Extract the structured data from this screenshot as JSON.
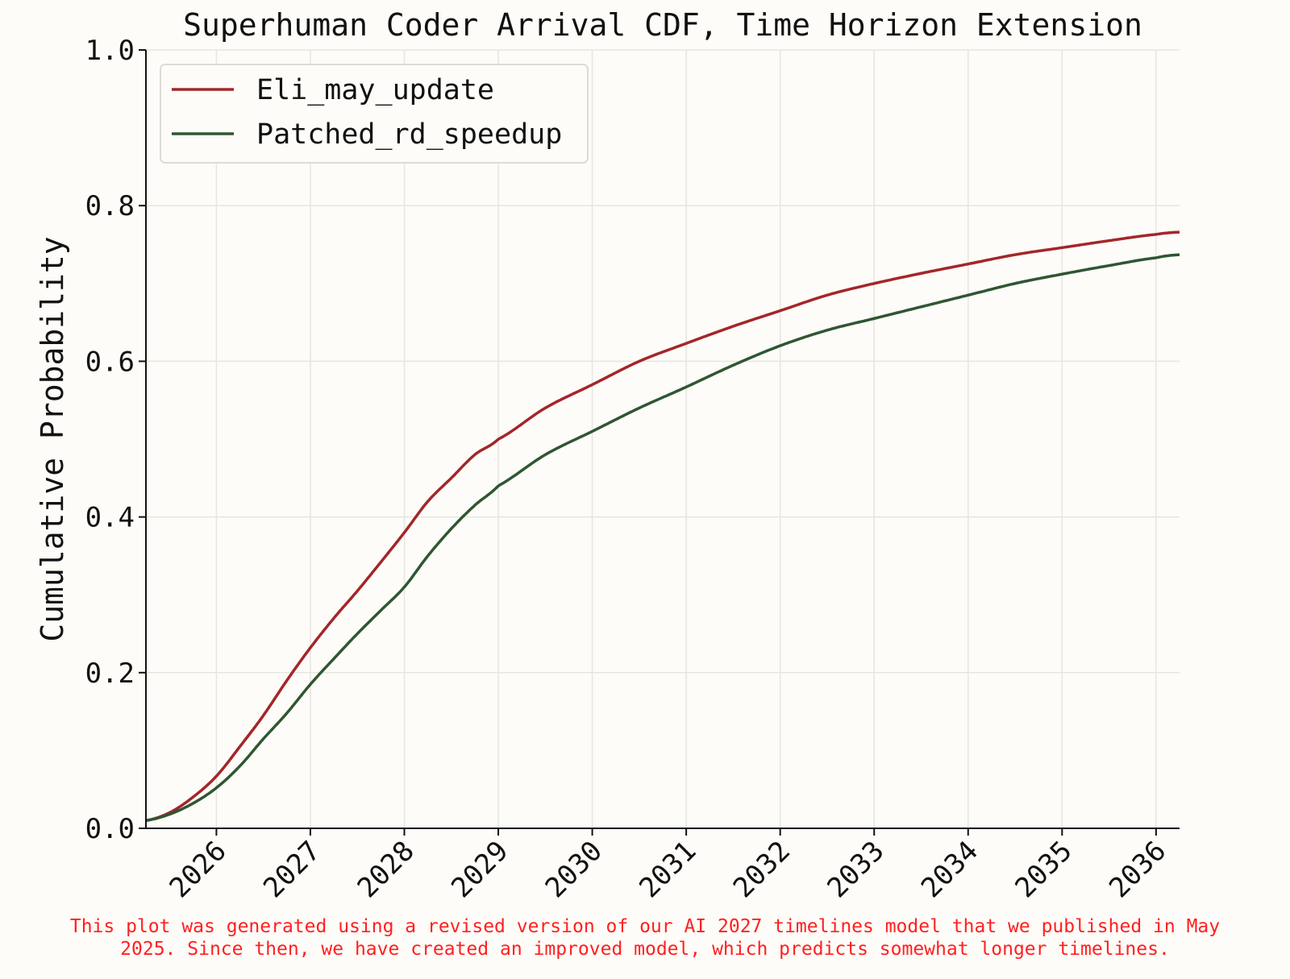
{
  "chart_data": {
    "type": "line",
    "title": "Superhuman Coder Arrival CDF, Time Horizon Extension",
    "xlabel": "",
    "ylabel": "Cumulative Probability",
    "xlim": [
      2025.25,
      2036.25
    ],
    "ylim": [
      0,
      1
    ],
    "xticks": [
      2026,
      2027,
      2028,
      2029,
      2030,
      2031,
      2032,
      2033,
      2034,
      2035,
      2036
    ],
    "xtick_labels": [
      "2026",
      "2027",
      "2028",
      "2029",
      "2030",
      "2031",
      "2032",
      "2033",
      "2034",
      "2035",
      "2036"
    ],
    "yticks": [
      0,
      0.2,
      0.4,
      0.6,
      0.8,
      1.0
    ],
    "ytick_labels": [
      "0.0",
      "0.2",
      "0.4",
      "0.6",
      "0.8",
      "1.0"
    ],
    "grid": true,
    "legend_position": "upper-left",
    "x": [
      2025.25,
      2025.5,
      2025.75,
      2026.0,
      2026.25,
      2026.5,
      2026.75,
      2027.0,
      2027.25,
      2027.5,
      2027.75,
      2028.0,
      2028.25,
      2028.5,
      2028.75,
      2029.0,
      2029.5,
      2030.0,
      2030.5,
      2031.0,
      2031.5,
      2032.0,
      2032.5,
      2033.0,
      2033.5,
      2034.0,
      2034.5,
      2035.0,
      2035.5,
      2036.0,
      2036.25
    ],
    "series": [
      {
        "name": "Eli_may_update",
        "color": "#a3262a",
        "values": [
          0.01,
          0.02,
          0.04,
          0.067,
          0.105,
          0.145,
          0.19,
          0.232,
          0.27,
          0.305,
          0.342,
          0.38,
          0.42,
          0.45,
          0.48,
          0.5,
          0.54,
          0.57,
          0.6,
          0.623,
          0.645,
          0.665,
          0.685,
          0.7,
          0.713,
          0.725,
          0.737,
          0.746,
          0.755,
          0.763,
          0.766
        ]
      },
      {
        "name": "Patched_rd_speedup",
        "color": "#2f5632",
        "values": [
          0.01,
          0.018,
          0.032,
          0.052,
          0.08,
          0.115,
          0.148,
          0.185,
          0.218,
          0.25,
          0.28,
          0.31,
          0.35,
          0.385,
          0.415,
          0.44,
          0.48,
          0.51,
          0.54,
          0.567,
          0.595,
          0.62,
          0.64,
          0.655,
          0.67,
          0.685,
          0.7,
          0.712,
          0.723,
          0.733,
          0.737
        ]
      }
    ]
  },
  "footnote": {
    "line1": "This plot was generated using a revised version of our AI 2027 timelines model that we published in May",
    "line2": "2025. Since then, we have created an improved model, which predicts somewhat longer timelines."
  }
}
